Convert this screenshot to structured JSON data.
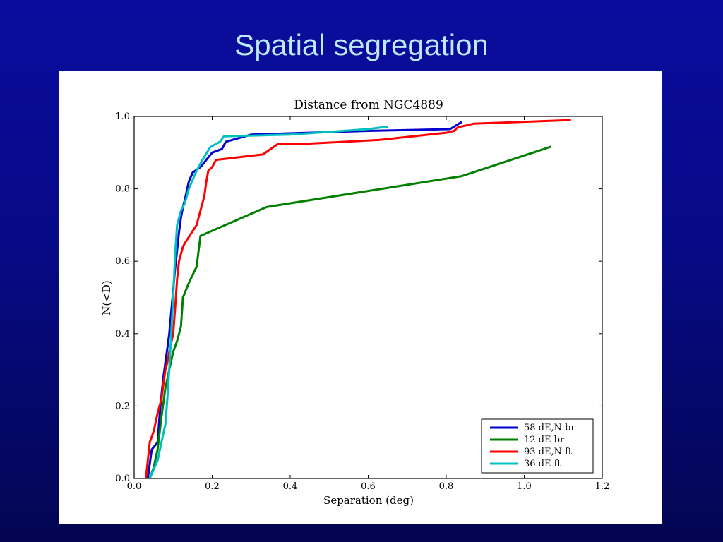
{
  "slide": {
    "title": "Spatial segregation"
  },
  "colors": {
    "background_top": "#0a0c9e",
    "background_bottom": "#030552",
    "title_text": "#bfe9ff",
    "panel": "#ffffff"
  },
  "chart_data": {
    "type": "line",
    "title": "Distance from NGC4889",
    "xlabel": "Separation (deg)",
    "ylabel": "N(<D)",
    "xlim": [
      0.0,
      1.2
    ],
    "ylim": [
      0.0,
      1.0
    ],
    "xticks": [
      "0.0",
      "0.2",
      "0.4",
      "0.6",
      "0.8",
      "1.0",
      "1.2"
    ],
    "yticks": [
      "0.0",
      "0.2",
      "0.4",
      "0.6",
      "0.8",
      "1.0"
    ],
    "grid": false,
    "legend_position": "bottom-right",
    "series": [
      {
        "name": "58 dE,N br",
        "color": "#0000cc",
        "x": [
          0.035,
          0.04,
          0.045,
          0.06,
          0.065,
          0.07,
          0.075,
          0.08,
          0.085,
          0.09,
          0.095,
          0.1,
          0.105,
          0.11,
          0.115,
          0.12,
          0.125,
          0.13,
          0.14,
          0.15,
          0.17,
          0.2,
          0.225,
          0.235,
          0.3,
          0.6,
          0.81,
          0.84
        ],
        "y": [
          0.0,
          0.04,
          0.08,
          0.1,
          0.17,
          0.23,
          0.28,
          0.32,
          0.36,
          0.4,
          0.46,
          0.52,
          0.58,
          0.63,
          0.68,
          0.72,
          0.75,
          0.77,
          0.82,
          0.845,
          0.86,
          0.9,
          0.91,
          0.93,
          0.95,
          0.96,
          0.965,
          0.985
        ]
      },
      {
        "name": "12 dE br",
        "color": "#007f00",
        "x": [
          0.04,
          0.05,
          0.06,
          0.07,
          0.08,
          0.09,
          0.1,
          0.11,
          0.12,
          0.125,
          0.14,
          0.16,
          0.17,
          0.34,
          0.84,
          1.07
        ],
        "y": [
          0.0,
          0.03,
          0.08,
          0.17,
          0.25,
          0.3,
          0.35,
          0.38,
          0.42,
          0.5,
          0.54,
          0.585,
          0.67,
          0.75,
          0.835,
          0.917
        ]
      },
      {
        "name": "93 dE,N ft",
        "color": "#ff0000",
        "x": [
          0.03,
          0.04,
          0.05,
          0.06,
          0.07,
          0.075,
          0.08,
          0.085,
          0.09,
          0.1,
          0.105,
          0.11,
          0.115,
          0.125,
          0.13,
          0.16,
          0.18,
          0.185,
          0.19,
          0.2,
          0.21,
          0.33,
          0.37,
          0.45,
          0.63,
          0.8,
          0.82,
          0.83,
          0.87,
          1.12
        ],
        "y": [
          0.0,
          0.1,
          0.13,
          0.18,
          0.22,
          0.26,
          0.3,
          0.32,
          0.35,
          0.4,
          0.47,
          0.55,
          0.6,
          0.64,
          0.65,
          0.7,
          0.78,
          0.82,
          0.85,
          0.86,
          0.88,
          0.895,
          0.925,
          0.925,
          0.935,
          0.955,
          0.96,
          0.97,
          0.98,
          0.99
        ]
      },
      {
        "name": "36 dE ft",
        "color": "#00bfbf",
        "x": [
          0.04,
          0.06,
          0.07,
          0.08,
          0.085,
          0.09,
          0.095,
          0.1,
          0.105,
          0.11,
          0.12,
          0.13,
          0.14,
          0.16,
          0.175,
          0.195,
          0.22,
          0.23,
          0.4,
          0.6,
          0.65
        ],
        "y": [
          0.0,
          0.05,
          0.1,
          0.15,
          0.22,
          0.3,
          0.4,
          0.5,
          0.62,
          0.7,
          0.74,
          0.76,
          0.8,
          0.85,
          0.88,
          0.915,
          0.93,
          0.945,
          0.95,
          0.965,
          0.972
        ]
      }
    ]
  }
}
